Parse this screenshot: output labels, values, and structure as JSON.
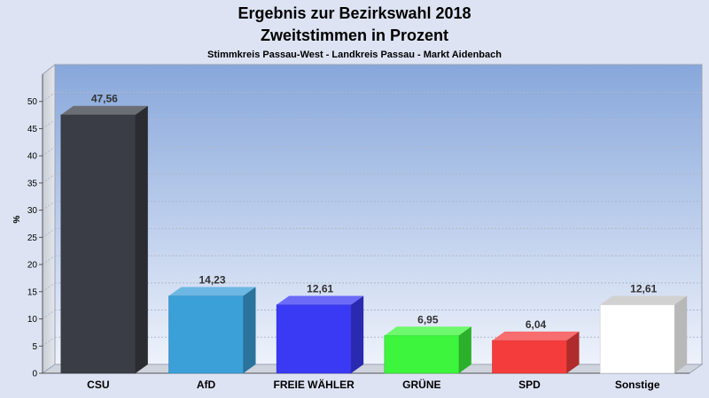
{
  "chart_data": {
    "type": "bar",
    "title": "Ergebnis zur Bezirkswahl 2018",
    "title2": "Zweitstimmen in Prozent",
    "subtitle": "Stimmkreis Passau-West - Landkreis Passau - Markt Aidenbach",
    "ylabel": "%",
    "xlabel": "",
    "ylim": [
      0,
      55
    ],
    "yticks": [
      0,
      5,
      10,
      15,
      20,
      25,
      30,
      35,
      40,
      45,
      50
    ],
    "grid": true,
    "categories": [
      "CSU",
      "AfD",
      "FREIE WÄHLER",
      "GRÜNE",
      "SPD",
      "Sonstige"
    ],
    "values": [
      47.56,
      14.23,
      12.61,
      6.95,
      6.04,
      12.61
    ],
    "value_labels": [
      "47,56",
      "14,23",
      "12,61",
      "6,95",
      "6,04",
      "12,61"
    ],
    "colors": [
      "#3a3d45",
      "#3ba0d8",
      "#3a3af5",
      "#3cf53c",
      "#f53c3c",
      "#ffffff"
    ]
  }
}
